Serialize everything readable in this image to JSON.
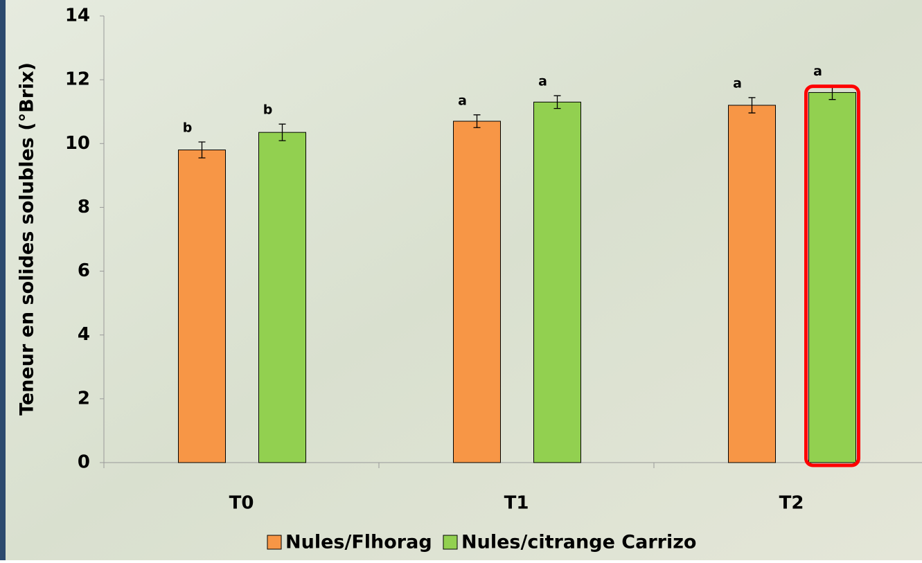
{
  "chart_data": {
    "type": "bar",
    "y_label": "Teneur en solides solubles (°Brix)",
    "categories": [
      "T0",
      "T1",
      "T2"
    ],
    "series": [
      {
        "name": "Nules/Flhorag",
        "color": "#f79646",
        "values": [
          9.8,
          10.7,
          11.2
        ],
        "errors": [
          0.25,
          0.2,
          0.24
        ],
        "letters": [
          "b",
          "a",
          "a"
        ]
      },
      {
        "name": "Nules/citrange Carrizo",
        "color": "#92d050",
        "values": [
          10.35,
          11.3,
          11.6
        ],
        "errors": [
          0.26,
          0.2,
          0.22
        ],
        "letters": [
          "b",
          "a",
          "a"
        ]
      }
    ],
    "ylim": [
      0,
      14
    ],
    "yticks": [
      0,
      2,
      4,
      6,
      8,
      10,
      12,
      14
    ],
    "legend": "bottom"
  }
}
